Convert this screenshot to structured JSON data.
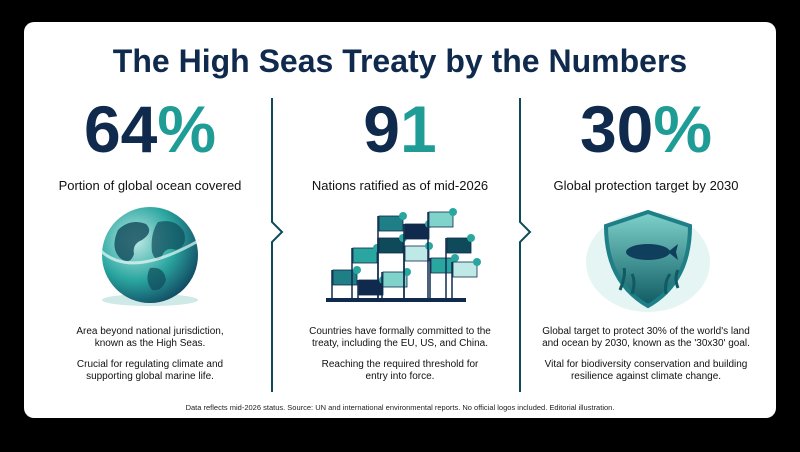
{
  "header": {
    "title": "The High Seas Treaty by the Numbers"
  },
  "columns": [
    {
      "stat_main": "64",
      "stat_accent": "%",
      "label": "Portion of global ocean covered",
      "paragraphs": [
        [
          "Area beyond national jurisdiction,",
          "known as the High Seas."
        ],
        [
          "Crucial for regulating climate and",
          "supporting global marine life."
        ]
      ]
    },
    {
      "stat_main": "9",
      "stat_accent": "1",
      "label": "Nations ratified as of mid-2026",
      "paragraphs": [
        [
          "Countries have formally committed to the",
          "treaty, including the EU, US, and China."
        ],
        [
          "Reaching the required threshold for",
          "entry into force."
        ]
      ]
    },
    {
      "stat_main": "30",
      "stat_accent": "%",
      "label": "Global protection target by 2030",
      "paragraphs": [
        [
          "Global target to protect 30% of the world's land",
          "and ocean by 2030, known as the '30x30' goal."
        ],
        [
          "Vital for biodiversity conservation and building",
          "resilience against climate change."
        ]
      ]
    }
  ],
  "footer": {
    "note": "Data reflects mid-2026 status. Source: UN and international environmental reports. No official logos included. Editorial illustration."
  }
}
